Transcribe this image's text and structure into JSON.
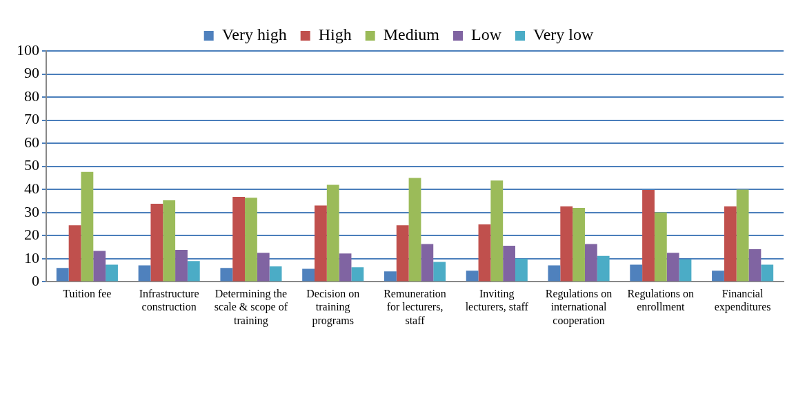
{
  "chart_data": {
    "type": "bar",
    "categories": [
      "Tuition fee",
      "Infrastructure construction",
      "Determining the scale & scope of training",
      "Decision on training programs",
      "Remuneration for lecturers, staff",
      "Inviting lecturers, staff",
      "Regulations on international cooperation",
      "Regulations on enrollment",
      "Financial expenditures"
    ],
    "series": [
      {
        "name": "Very high",
        "color": "#4f81bd",
        "values": [
          6.0,
          7.1,
          6.0,
          5.6,
          4.5,
          4.8,
          7.1,
          7.4,
          4.8
        ]
      },
      {
        "name": "High",
        "color": "#c0504d",
        "values": [
          24.5,
          33.8,
          36.8,
          33.1,
          24.5,
          24.9,
          32.7,
          39.8,
          32.7
        ]
      },
      {
        "name": "Medium",
        "color": "#9bbb59",
        "values": [
          47.6,
          35.3,
          36.4,
          42.0,
          45.0,
          43.9,
          32.0,
          30.1,
          39.9
        ]
      },
      {
        "name": "Low",
        "color": "#8064a2",
        "values": [
          13.4,
          13.8,
          12.6,
          12.3,
          16.4,
          15.6,
          16.4,
          12.6,
          14.1
        ]
      },
      {
        "name": "Very low",
        "color": "#4bacc6",
        "values": [
          7.4,
          9.0,
          6.7,
          6.3,
          8.6,
          10.0,
          11.2,
          9.7,
          7.4
        ]
      }
    ],
    "ylim": [
      0,
      100
    ],
    "yticks": [
      0,
      10,
      20,
      30,
      40,
      50,
      60,
      70,
      80,
      90,
      100
    ],
    "grid": "y",
    "legend": "top"
  }
}
